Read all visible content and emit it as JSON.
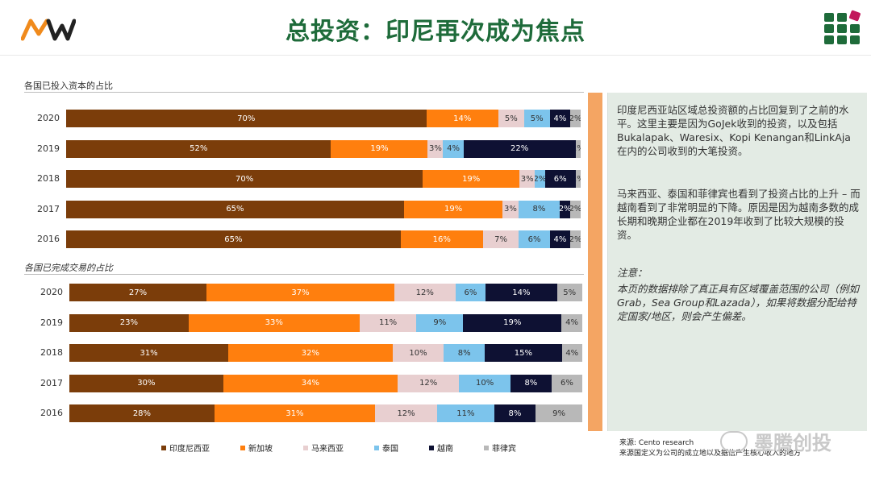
{
  "header": {
    "title": "总投资：印尼再次成为焦点",
    "logo_text": "MW"
  },
  "colors": {
    "indonesia": "#7b3d0a",
    "singapore": "#ff7f0e",
    "malaysia": "#e8cfd0",
    "thailand": "#7cc4ec",
    "vietnam": "#0e1133",
    "philippines": "#b8b8b8",
    "title_green": "#1e6b3a",
    "panel_bg": "#e3ebe4",
    "strip": "#f4a563"
  },
  "chart_data": [
    {
      "type": "bar",
      "stacked": true,
      "orientation": "horizontal",
      "title": "各国已投入资本的占比",
      "categories": [
        "2020",
        "2019",
        "2018",
        "2017",
        "2016"
      ],
      "series": [
        {
          "name": "印度尼西亚",
          "values": [
            70,
            52,
            70,
            65,
            65
          ],
          "labels": [
            "70%",
            "52%",
            "70%",
            "65%",
            "65%"
          ]
        },
        {
          "name": "新加坡",
          "values": [
            14,
            19,
            19,
            19,
            16
          ],
          "labels": [
            "14%",
            "19%",
            "19%",
            "19%",
            "16%"
          ]
        },
        {
          "name": "马来西亚",
          "values": [
            5,
            3,
            3,
            3,
            7
          ],
          "labels": [
            "5%",
            "3%",
            "3%",
            "3%",
            "7%"
          ]
        },
        {
          "name": "泰国",
          "values": [
            5,
            4,
            2,
            8,
            6
          ],
          "labels": [
            "5%",
            "4%",
            "2%",
            "8%",
            "6%"
          ]
        },
        {
          "name": "越南",
          "values": [
            4,
            22,
            6,
            2,
            4
          ],
          "labels": [
            "4%",
            "22%",
            "6%",
            "2%",
            "4%"
          ]
        },
        {
          "name": "菲律宾",
          "values": [
            2,
            1,
            1,
            2,
            2
          ],
          "labels": [
            "2%",
            "1%",
            "1%",
            "2%",
            "2%"
          ]
        }
      ]
    },
    {
      "type": "bar",
      "stacked": true,
      "orientation": "horizontal",
      "title": "各国已完成交易的占比",
      "categories": [
        "2020",
        "2019",
        "2018",
        "2017",
        "2016"
      ],
      "series": [
        {
          "name": "印度尼西亚",
          "values": [
            27,
            23,
            31,
            30,
            28
          ],
          "labels": [
            "27%",
            "23%",
            "31%",
            "30%",
            "28%"
          ]
        },
        {
          "name": "新加坡",
          "values": [
            37,
            33,
            32,
            34,
            31
          ],
          "labels": [
            "37%",
            "33%",
            "32%",
            "34%",
            "31%"
          ]
        },
        {
          "name": "马来西亚",
          "values": [
            12,
            11,
            10,
            12,
            12
          ],
          "labels": [
            "12%",
            "11%",
            "10%",
            "12%",
            "12%"
          ]
        },
        {
          "name": "泰国",
          "values": [
            6,
            9,
            8,
            10,
            11
          ],
          "labels": [
            "6%",
            "9%",
            "8%",
            "10%",
            "11%"
          ]
        },
        {
          "name": "越南",
          "values": [
            14,
            19,
            15,
            8,
            8
          ],
          "labels": [
            "14%",
            "19%",
            "15%",
            "8%",
            "8%"
          ]
        },
        {
          "name": "菲律宾",
          "values": [
            5,
            4,
            4,
            6,
            9
          ],
          "labels": [
            "5%",
            "4%",
            "4%",
            "6%",
            "9%"
          ]
        }
      ]
    }
  ],
  "legend": [
    "印度尼西亚",
    "新加坡",
    "马来西亚",
    "泰国",
    "越南",
    "菲律宾"
  ],
  "panel": {
    "para1": "印度尼西亚站区域总投资额的占比回复到了之前的水平。这里主要是因为GoJek收到的投资，以及包括Bukalapak、Waresix、Kopi Kenangan和LinkAja在内的公司收到的大笔投资。",
    "para2": "马来西亚、泰国和菲律宾也看到了投资占比的上升 – 而越南看到了非常明显的下降。原因是因为越南多数的成长期和晚期企业都在2019年收到了比较大规模的投资。",
    "note_head": "注意：",
    "note": "本页的数据排除了真正具有区域覆盖范围的公司（例如Grab，Sea Group和Lazada），如果将数据分配给特定国家/地区，则会产生偏差。"
  },
  "source": {
    "line1": "来源: Cento research",
    "line2": "来源国定义为公司的成立地以及据信产生核心收入的地方"
  },
  "watermark": "墨腾创投"
}
